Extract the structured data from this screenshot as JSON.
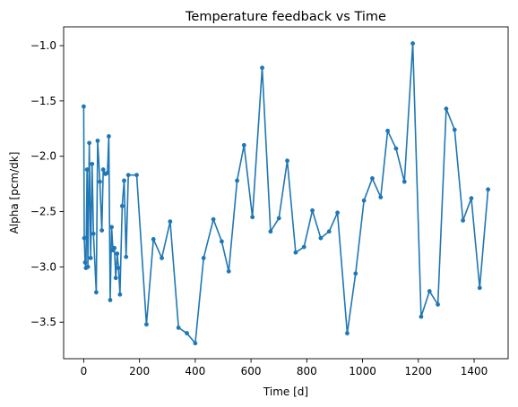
{
  "chart_data": {
    "type": "line",
    "title": "Temperature feedback vs Time",
    "xlabel": "Time [d]",
    "ylabel": "Alpha [pcm/dk]",
    "xlim": [
      -72,
      1522
    ],
    "ylim": [
      -3.83,
      -0.83
    ],
    "xticks": [
      0,
      200,
      400,
      600,
      800,
      1000,
      1200,
      1400
    ],
    "yticks": [
      -3.5,
      -3.0,
      -2.5,
      -2.0,
      -1.5,
      -1.0
    ],
    "xtick_labels": [
      "0",
      "200",
      "400",
      "600",
      "800",
      "1000",
      "1200",
      "1400"
    ],
    "ytick_labels": [
      "−3.5",
      "−3.0",
      "−2.5",
      "−2.0",
      "−1.5",
      "−1.0"
    ],
    "grid": false,
    "line_color": "#1f77b4",
    "series": [
      {
        "marker": "circle",
        "x": [
          0,
          2,
          5,
          8,
          12,
          15,
          20,
          25,
          30,
          35,
          45,
          50,
          58,
          65,
          70,
          78,
          85,
          90,
          95,
          100,
          105,
          110,
          115,
          120,
          125,
          130,
          138,
          145,
          152,
          160,
          190,
          225,
          250,
          280,
          310,
          340,
          370,
          400,
          430,
          465,
          495,
          520,
          550,
          575,
          605,
          640,
          670,
          700,
          730,
          760,
          790,
          820,
          850,
          880,
          910,
          945,
          975,
          1005,
          1035,
          1065,
          1090,
          1120,
          1150,
          1180,
          1210,
          1240,
          1270,
          1300,
          1330,
          1360,
          1390,
          1420,
          1450
        ],
        "y": [
          -1.55,
          -2.74,
          -2.96,
          -3.01,
          -2.12,
          -3.0,
          -1.88,
          -2.92,
          -2.07,
          -2.7,
          -3.23,
          -1.86,
          -2.23,
          -2.67,
          -2.12,
          -2.16,
          -2.15,
          -1.82,
          -3.3,
          -2.64,
          -2.85,
          -2.83,
          -3.1,
          -2.88,
          -3.01,
          -3.25,
          -2.45,
          -2.22,
          -2.91,
          -2.17,
          -2.17,
          -3.52,
          -2.75,
          -2.92,
          -2.59,
          -3.55,
          -3.6,
          -3.69,
          -2.92,
          -2.57,
          -2.77,
          -3.04,
          -2.22,
          -1.9,
          -2.55,
          -1.2,
          -2.68,
          -2.56,
          -2.04,
          -2.87,
          -2.82,
          -2.49,
          -2.74,
          -2.68,
          -2.51,
          -3.6,
          -3.06,
          -2.4,
          -2.2,
          -2.37,
          -1.77,
          -1.93,
          -2.23,
          -0.98,
          -3.45,
          -3.22,
          -3.34,
          -1.57,
          -1.76,
          -2.58,
          -2.38,
          -3.19,
          -2.3
        ]
      }
    ]
  }
}
